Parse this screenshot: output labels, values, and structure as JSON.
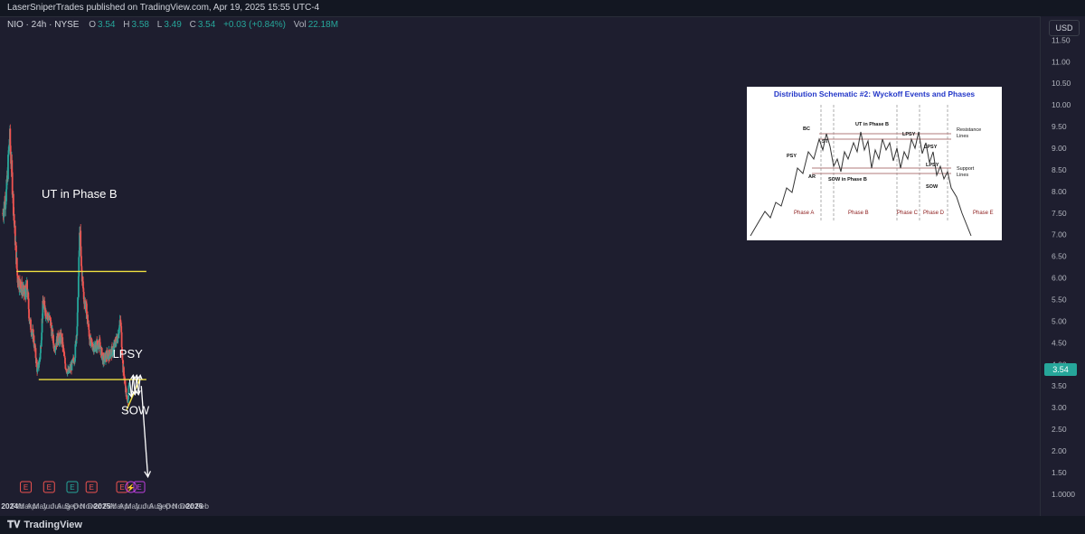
{
  "header": {
    "publisher": "LaserSniperTrades published on TradingView.com, Apr 19, 2025 15:55 UTC-4"
  },
  "symbol": {
    "name": "NIO · 24h · NYSE",
    "o_label": "O",
    "o": "3.54",
    "h_label": "H",
    "h": "3.58",
    "l_label": "L",
    "l": "3.49",
    "c_label": "C",
    "c": "3.54",
    "change": "+0.03 (+0.84%)",
    "vol_label": "Vol",
    "vol": "22.18M"
  },
  "currency": "USD",
  "last_price": "3.54",
  "branding": "TradingView",
  "colors": {
    "background": "#1e1e2f",
    "up": "#26a69a",
    "down": "#ef5350",
    "trendline": "#f0e040",
    "annotation": "#ffffff"
  },
  "chart_data": {
    "type": "candlestick",
    "title": "",
    "y_scale": "linear",
    "ylim": [
      0.6,
      11.8
    ],
    "y_ticks": [
      "1.0000",
      "1.50",
      "2.00",
      "2.50",
      "3.00",
      "3.50",
      "4.00",
      "4.50",
      "5.00",
      "5.50",
      "6.00",
      "6.50",
      "7.00",
      "7.50",
      "8.00",
      "8.50",
      "9.00",
      "9.50",
      "10.00",
      "10.50",
      "11.00",
      "11.50"
    ],
    "x_ticks": [
      "2024",
      "Feb",
      "Mar",
      "Apr",
      "May",
      "Jun",
      "Jul",
      "Aug",
      "Sep",
      "Oct",
      "Nov",
      "Dec",
      "2025",
      "Feb",
      "Mar",
      "Apr",
      "May",
      "Jun",
      "Jul",
      "Aug",
      "Sep",
      "Oct",
      "Nov",
      "Dec",
      "2026",
      "Feb"
    ],
    "price_path": [
      [
        "2023-12-05",
        7.5
      ],
      [
        "2023-12-20",
        8.0
      ],
      [
        "2024-01-01",
        9.3
      ],
      [
        "2024-01-08",
        8.6
      ],
      [
        "2024-01-20",
        7.2
      ],
      [
        "2024-02-01",
        6.0
      ],
      [
        "2024-02-15",
        5.8
      ],
      [
        "2024-03-01",
        5.6
      ],
      [
        "2024-03-10",
        5.8
      ],
      [
        "2024-03-20",
        5.0
      ],
      [
        "2024-04-05",
        4.6
      ],
      [
        "2024-04-20",
        3.85
      ],
      [
        "2024-05-01",
        4.2
      ],
      [
        "2024-05-12",
        5.4
      ],
      [
        "2024-05-25",
        5.2
      ],
      [
        "2024-06-10",
        5.0
      ],
      [
        "2024-06-25",
        4.4
      ],
      [
        "2024-07-10",
        4.6
      ],
      [
        "2024-07-25",
        4.6
      ],
      [
        "2024-08-08",
        4.0
      ],
      [
        "2024-08-20",
        3.8
      ],
      [
        "2024-09-05",
        4.0
      ],
      [
        "2024-09-15",
        4.2
      ],
      [
        "2024-09-25",
        5.0
      ],
      [
        "2024-10-05",
        7.2
      ],
      [
        "2024-10-10",
        6.3
      ],
      [
        "2024-10-20",
        5.6
      ],
      [
        "2024-11-01",
        5.2
      ],
      [
        "2024-11-15",
        4.5
      ],
      [
        "2024-12-01",
        4.4
      ],
      [
        "2024-12-20",
        4.5
      ],
      [
        "2025-01-05",
        4.1
      ],
      [
        "2025-01-20",
        4.2
      ],
      [
        "2025-02-10",
        4.3
      ],
      [
        "2025-03-01",
        4.6
      ],
      [
        "2025-03-15",
        5.0
      ],
      [
        "2025-03-25",
        3.9
      ],
      [
        "2025-04-05",
        3.4
      ],
      [
        "2025-04-10",
        3.1
      ],
      [
        "2025-04-19",
        3.54
      ]
    ],
    "resistance_line": {
      "y": 6.15,
      "from": "2024-01-28",
      "to": "2025-06-25"
    },
    "support_line": {
      "y": 3.65,
      "from": "2024-04-25",
      "to": "2025-06-25"
    },
    "rising_line": {
      "from": [
        "2025-04-08",
        2.95
      ],
      "to": [
        "2025-05-30",
        3.65
      ]
    },
    "projection_arrow": {
      "from": [
        "2025-06-05",
        3.5
      ],
      "to": [
        "2025-07-01",
        1.4
      ]
    },
    "annotations": [
      {
        "text": "UT in Phase B"
      },
      {
        "text": "LPSY"
      },
      {
        "text": "SOW"
      }
    ],
    "earnings_markers": [
      "E",
      "E",
      "E",
      "E",
      "E",
      "E"
    ],
    "dividend_marker": "⚡",
    "inset_schematic": {
      "title": "Distribution Schematic #2: Wyckoff Events and Phases",
      "labels": [
        "BC",
        "ST",
        "UT in Phase B",
        "LPSY",
        "Resistance",
        "Lines",
        "PSY",
        "LPSY",
        "AR",
        "SOW in Phase B",
        "Support",
        "Lines",
        "SOW"
      ],
      "phases": [
        "Phase A",
        "Phase B",
        "Phase C",
        "Phase D",
        "Phase E"
      ]
    }
  }
}
